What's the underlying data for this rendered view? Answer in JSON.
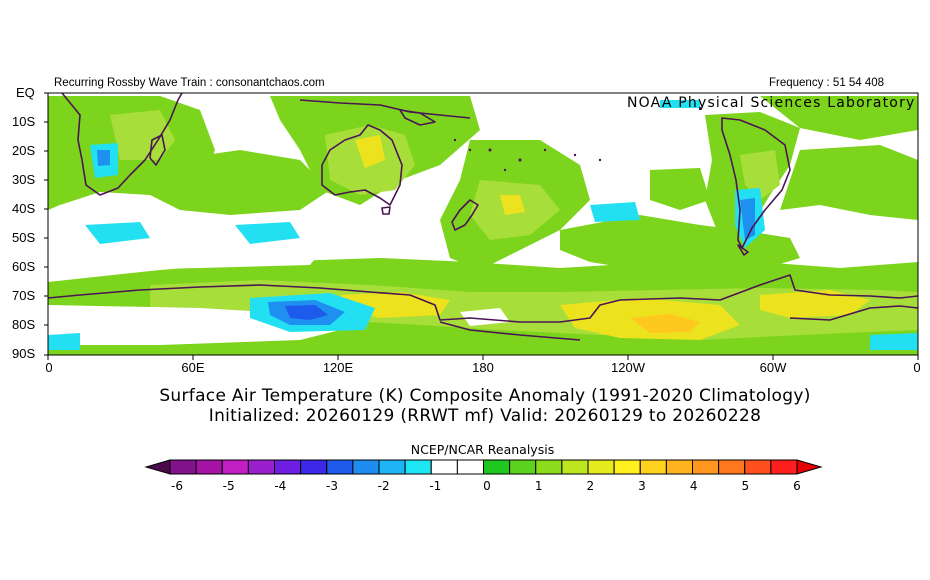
{
  "header": {
    "left_text": "Recurring Rossby Wave Train : consonantchaos.com",
    "right_text": "Frequency : 51 54 408"
  },
  "map": {
    "credit": "NOAA Physical Sciences Laboratory",
    "lat_labels": [
      "EQ",
      "10S",
      "20S",
      "30S",
      "40S",
      "50S",
      "60S",
      "70S",
      "80S",
      "90S"
    ],
    "lon_labels": [
      "0",
      "60E",
      "120E",
      "180",
      "120W",
      "60W",
      "0"
    ]
  },
  "title": {
    "line1": "Surface Air Temperature (K) Composite Anomaly (1991-2020 Climatology)",
    "line2": "Initialized: 20260129 (RRWT mf) Valid: 20260129 to 20260228"
  },
  "colorbar": {
    "title": "NCEP/NCAR Reanalysis",
    "labels": [
      "-6",
      "-5",
      "-4",
      "-3",
      "-2",
      "-1",
      "0",
      "1",
      "2",
      "3",
      "4",
      "5",
      "6"
    ],
    "colors": [
      "#4b0a4b",
      "#82128c",
      "#a514a5",
      "#c31ec3",
      "#9b1fcd",
      "#6e1ee1",
      "#3c28e6",
      "#1e5aeb",
      "#1e8cf0",
      "#1eb4f5",
      "#1ee6f5",
      "#ffffff",
      "#ffffff",
      "#1ec81e",
      "#5ad21e",
      "#8cdc1e",
      "#bee61e",
      "#e6eb1e",
      "#fff01e",
      "#ffd21e",
      "#ffb41e",
      "#ff961e",
      "#ff781e",
      "#ff501e",
      "#ff1e1e",
      "#e60000"
    ]
  }
}
